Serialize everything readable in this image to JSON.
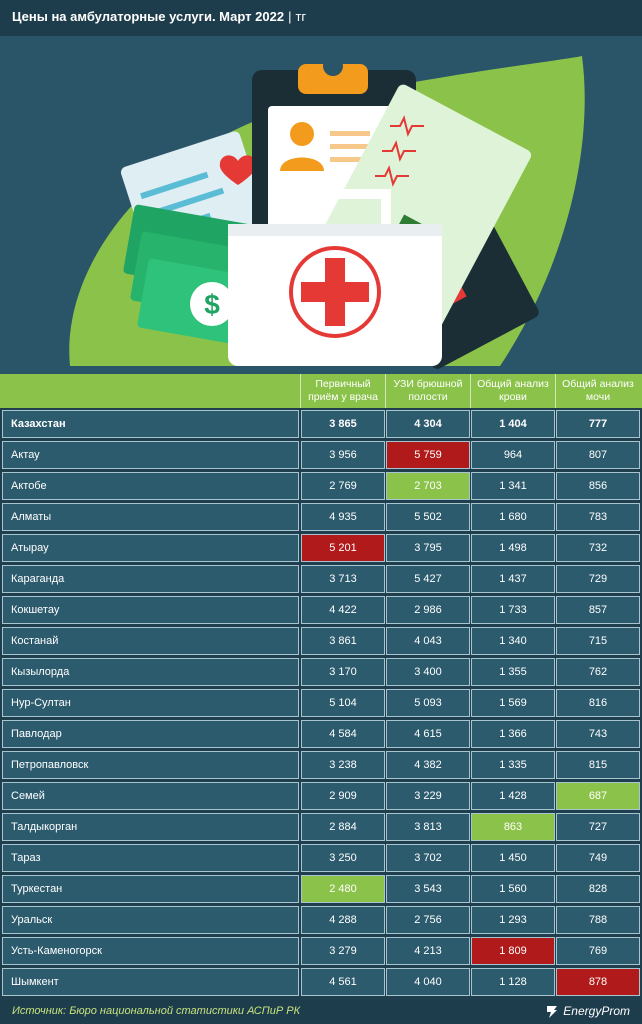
{
  "title": {
    "main": "Цены на амбулаторные услуги. Март 2022",
    "sep": "|",
    "unit": "тг"
  },
  "colors": {
    "bg": "#1f3f4f",
    "cell": "#2d5b6e",
    "accent": "#8bc34a",
    "highest": "#b01a1a",
    "lowest": "#8bc34a"
  },
  "chart_data": {
    "type": "table",
    "columns": [
      "Первичный приём у врача",
      "УЗИ брюшной полости",
      "Общий анализ крови",
      "Общий анализ мочи"
    ],
    "rows": [
      {
        "name": "Казахстан",
        "values": [
          "3 865",
          "4 304",
          "1 404",
          "777"
        ],
        "total": true,
        "marks": [
          null,
          null,
          null,
          null
        ]
      },
      {
        "name": "Актау",
        "values": [
          "3 956",
          "5 759",
          "964",
          "807"
        ],
        "marks": [
          null,
          "hi",
          null,
          null
        ]
      },
      {
        "name": "Актобе",
        "values": [
          "2 769",
          "2 703",
          "1 341",
          "856"
        ],
        "marks": [
          null,
          "lo",
          null,
          null
        ]
      },
      {
        "name": "Алматы",
        "values": [
          "4 935",
          "5 502",
          "1 680",
          "783"
        ],
        "marks": [
          null,
          null,
          null,
          null
        ]
      },
      {
        "name": "Атырау",
        "values": [
          "5 201",
          "3 795",
          "1 498",
          "732"
        ],
        "marks": [
          "hi",
          null,
          null,
          null
        ]
      },
      {
        "name": "Караганда",
        "values": [
          "3 713",
          "5 427",
          "1 437",
          "729"
        ],
        "marks": [
          null,
          null,
          null,
          null
        ]
      },
      {
        "name": "Кокшетау",
        "values": [
          "4 422",
          "2 986",
          "1 733",
          "857"
        ],
        "marks": [
          null,
          null,
          null,
          null
        ]
      },
      {
        "name": "Костанай",
        "values": [
          "3 861",
          "4 043",
          "1 340",
          "715"
        ],
        "marks": [
          null,
          null,
          null,
          null
        ]
      },
      {
        "name": "Кызылорда",
        "values": [
          "3 170",
          "3 400",
          "1 355",
          "762"
        ],
        "marks": [
          null,
          null,
          null,
          null
        ]
      },
      {
        "name": "Нур-Султан",
        "values": [
          "5 104",
          "5 093",
          "1 569",
          "816"
        ],
        "marks": [
          null,
          null,
          null,
          null
        ]
      },
      {
        "name": "Павлодар",
        "values": [
          "4 584",
          "4 615",
          "1 366",
          "743"
        ],
        "marks": [
          null,
          null,
          null,
          null
        ]
      },
      {
        "name": "Петропавловск",
        "values": [
          "3 238",
          "4 382",
          "1 335",
          "815"
        ],
        "marks": [
          null,
          null,
          null,
          null
        ]
      },
      {
        "name": "Семей",
        "values": [
          "2 909",
          "3 229",
          "1 428",
          "687"
        ],
        "marks": [
          null,
          null,
          null,
          "lo"
        ]
      },
      {
        "name": "Талдыкорган",
        "values": [
          "2 884",
          "3 813",
          "863",
          "727"
        ],
        "marks": [
          null,
          null,
          "lo",
          null
        ]
      },
      {
        "name": "Тараз",
        "values": [
          "3 250",
          "3 702",
          "1 450",
          "749"
        ],
        "marks": [
          null,
          null,
          null,
          null
        ]
      },
      {
        "name": "Туркестан",
        "values": [
          "2 480",
          "3 543",
          "1 560",
          "828"
        ],
        "marks": [
          "lo",
          null,
          null,
          null
        ]
      },
      {
        "name": "Уральск",
        "values": [
          "4 288",
          "2 756",
          "1 293",
          "788"
        ],
        "marks": [
          null,
          null,
          null,
          null
        ]
      },
      {
        "name": "Усть-Каменогорск",
        "values": [
          "3 279",
          "4 213",
          "1 809",
          "769"
        ],
        "marks": [
          null,
          null,
          "hi",
          null
        ]
      },
      {
        "name": "Шымкент",
        "values": [
          "4 561",
          "4 040",
          "1 128",
          "878"
        ],
        "marks": [
          null,
          null,
          null,
          "hi"
        ]
      }
    ]
  },
  "footer": {
    "source": "Источник: Бюро национальной статистики АСПиР РК",
    "logo": "EnergyProm"
  }
}
